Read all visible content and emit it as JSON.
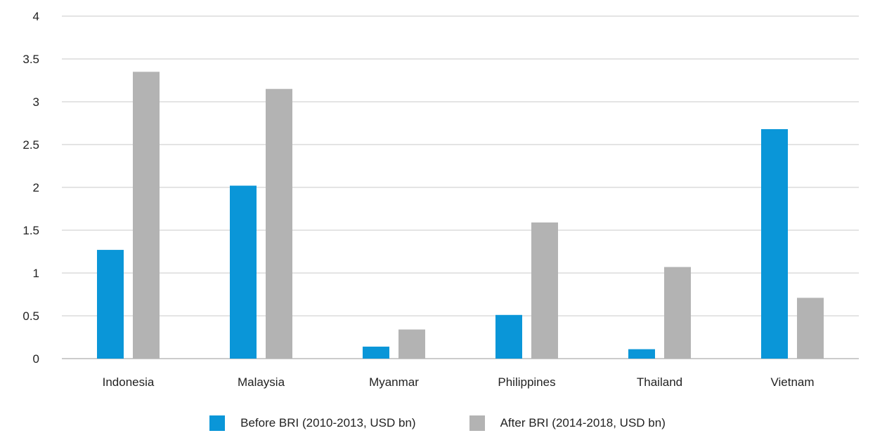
{
  "chart_data": {
    "type": "bar",
    "title": "",
    "xlabel": "",
    "ylabel": "",
    "categories": [
      "Indonesia",
      "Malaysia",
      "Myanmar",
      "Philippines",
      "Thailand",
      "Vietnam"
    ],
    "series": [
      {
        "name": "Before BRI (2010-2013, USD bn)",
        "color": "#0a96d8",
        "values": [
          1.27,
          2.02,
          0.14,
          0.51,
          0.11,
          2.68
        ]
      },
      {
        "name": "After BRI (2014-2018, USD bn)",
        "color": "#b3b3b3",
        "values": [
          3.35,
          3.15,
          0.34,
          1.59,
          1.07,
          0.71
        ]
      }
    ],
    "ylim": [
      0,
      4
    ],
    "yticks": [
      "0",
      "0.5",
      "1",
      "1.5",
      "2",
      "2.5",
      "3",
      "3.5",
      "4"
    ],
    "grid": true,
    "legend_position": "bottom-center"
  }
}
